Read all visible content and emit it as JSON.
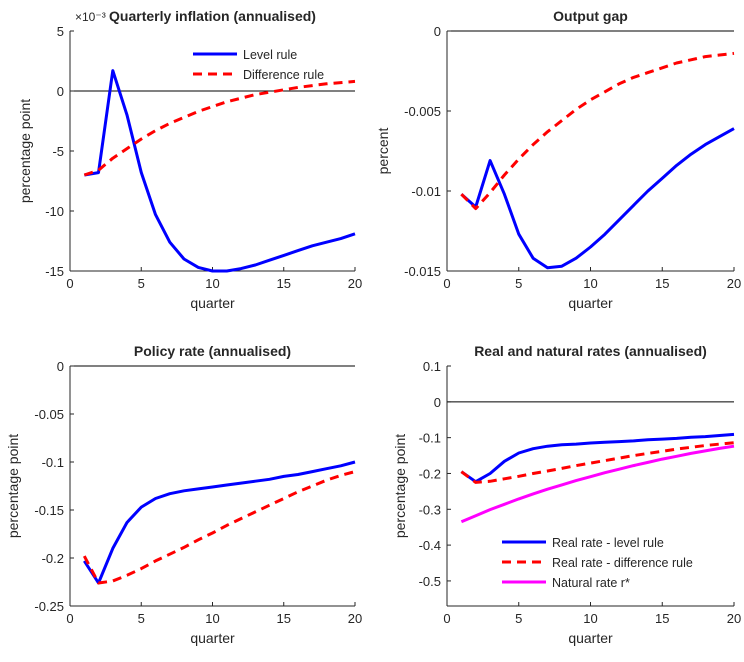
{
  "colors": {
    "level": "#0000ff",
    "difference": "#ff0000",
    "natural": "#ff00ff",
    "axis": "#262626",
    "zero": "#000000"
  },
  "chart_data": [
    {
      "type": "line",
      "title": "Quarterly inflation (annualised)",
      "xlabel": "quarter",
      "ylabel": "percentage point",
      "exponent": "×10⁻³",
      "xlim": [
        0,
        20
      ],
      "ylim": [
        -15,
        5
      ],
      "xticks": [
        0,
        5,
        10,
        15,
        20
      ],
      "xtick_labels": [
        "0",
        "5",
        "10",
        "15",
        "20"
      ],
      "yticks": [
        -15,
        -10,
        -5,
        0,
        5
      ],
      "ytick_labels": [
        "-15",
        "-10",
        "-5",
        "0",
        "5"
      ],
      "legend": "top-right",
      "zero_line": true,
      "x": [
        1,
        2,
        3,
        4,
        5,
        6,
        7,
        8,
        9,
        10,
        11,
        12,
        13,
        14,
        15,
        16,
        17,
        18,
        19,
        20
      ],
      "series": [
        {
          "name": "Level rule",
          "style": "solid",
          "color": "#0000ff",
          "values": [
            -7.0,
            -6.8,
            1.7,
            -2.0,
            -6.8,
            -10.3,
            -12.6,
            -14.0,
            -14.7,
            -15.0,
            -15.0,
            -14.8,
            -14.5,
            -14.1,
            -13.7,
            -13.3,
            -12.9,
            -12.6,
            -12.3,
            -11.9
          ]
        },
        {
          "name": "Difference rule",
          "style": "dashed",
          "color": "#ff0000",
          "values": [
            -7.0,
            -6.6,
            -5.6,
            -4.8,
            -4.0,
            -3.3,
            -2.7,
            -2.2,
            -1.7,
            -1.3,
            -0.9,
            -0.6,
            -0.3,
            -0.1,
            0.1,
            0.3,
            0.45,
            0.6,
            0.7,
            0.8
          ]
        }
      ]
    },
    {
      "type": "line",
      "title": "Output gap",
      "xlabel": "quarter",
      "ylabel": "percent",
      "xlim": [
        0,
        20
      ],
      "ylim": [
        -0.015,
        0
      ],
      "xticks": [
        0,
        5,
        10,
        15,
        20
      ],
      "xtick_labels": [
        "0",
        "5",
        "10",
        "15",
        "20"
      ],
      "yticks": [
        -0.015,
        -0.01,
        -0.005,
        0
      ],
      "ytick_labels": [
        "-0.015",
        "-0.01",
        "-0.005",
        "0"
      ],
      "zero_line": true,
      "x": [
        1,
        2,
        3,
        4,
        5,
        6,
        7,
        8,
        9,
        10,
        11,
        12,
        13,
        14,
        15,
        16,
        17,
        18,
        19,
        20
      ],
      "series": [
        {
          "name": "Level rule",
          "style": "solid",
          "color": "#0000ff",
          "values": [
            -0.0102,
            -0.011,
            -0.0081,
            -0.0102,
            -0.0127,
            -0.0142,
            -0.0148,
            -0.0147,
            -0.0142,
            -0.0135,
            -0.0127,
            -0.0118,
            -0.0109,
            -0.01,
            -0.0092,
            -0.0084,
            -0.0077,
            -0.0071,
            -0.0066,
            -0.0061
          ]
        },
        {
          "name": "Difference rule",
          "style": "dashed",
          "color": "#ff0000",
          "values": [
            -0.0102,
            -0.0111,
            -0.0101,
            -0.009,
            -0.008,
            -0.0071,
            -0.0063,
            -0.0056,
            -0.0049,
            -0.0043,
            -0.0038,
            -0.0033,
            -0.0029,
            -0.0026,
            -0.0023,
            -0.002,
            -0.0018,
            -0.0016,
            -0.0015,
            -0.0014
          ]
        }
      ]
    },
    {
      "type": "line",
      "title": "Policy rate (annualised)",
      "xlabel": "quarter",
      "ylabel": "percentage point",
      "xlim": [
        0,
        20
      ],
      "ylim": [
        -0.25,
        0
      ],
      "xticks": [
        0,
        5,
        10,
        15,
        20
      ],
      "xtick_labels": [
        "0",
        "5",
        "10",
        "15",
        "20"
      ],
      "yticks": [
        -0.25,
        -0.2,
        -0.15,
        -0.1,
        -0.05,
        0
      ],
      "ytick_labels": [
        "-0.25",
        "-0.2",
        "-0.15",
        "-0.1",
        "-0.05",
        "0"
      ],
      "zero_line": true,
      "x": [
        1,
        2,
        3,
        4,
        5,
        6,
        7,
        8,
        9,
        10,
        11,
        12,
        13,
        14,
        15,
        16,
        17,
        18,
        19,
        20
      ],
      "series": [
        {
          "name": "Level rule",
          "style": "solid",
          "color": "#0000ff",
          "values": [
            -0.203,
            -0.226,
            -0.19,
            -0.163,
            -0.147,
            -0.138,
            -0.133,
            -0.13,
            -0.128,
            -0.126,
            -0.124,
            -0.122,
            -0.12,
            -0.118,
            -0.115,
            -0.113,
            -0.11,
            -0.107,
            -0.104,
            -0.1
          ]
        },
        {
          "name": "Difference rule",
          "style": "dashed",
          "color": "#ff0000",
          "values": [
            -0.198,
            -0.226,
            -0.224,
            -0.218,
            -0.211,
            -0.203,
            -0.196,
            -0.189,
            -0.181,
            -0.174,
            -0.166,
            -0.159,
            -0.152,
            -0.145,
            -0.138,
            -0.131,
            -0.125,
            -0.119,
            -0.114,
            -0.11
          ]
        }
      ]
    },
    {
      "type": "line",
      "title": "Real and natural rates (annualised)",
      "xlabel": "quarter",
      "ylabel": "percentage point",
      "xlim": [
        0,
        20
      ],
      "ylim": [
        -0.57,
        0.1
      ],
      "xticks": [
        0,
        5,
        10,
        15,
        20
      ],
      "xtick_labels": [
        "0",
        "5",
        "10",
        "15",
        "20"
      ],
      "yticks": [
        -0.5,
        -0.4,
        -0.3,
        -0.2,
        -0.1,
        0,
        0.1
      ],
      "ytick_labels": [
        "-0.5",
        "-0.4",
        "-0.3",
        "-0.2",
        "-0.1",
        "0",
        "0.1"
      ],
      "legend": "bottom-center",
      "zero_line": true,
      "x": [
        1,
        2,
        3,
        4,
        5,
        6,
        7,
        8,
        9,
        10,
        11,
        12,
        13,
        14,
        15,
        16,
        17,
        18,
        19,
        20
      ],
      "series": [
        {
          "name": "Real rate - level rule",
          "style": "solid",
          "color": "#0000ff",
          "values": [
            -0.195,
            -0.223,
            -0.2,
            -0.166,
            -0.143,
            -0.131,
            -0.124,
            -0.12,
            -0.118,
            -0.115,
            -0.113,
            -0.111,
            -0.109,
            -0.106,
            -0.104,
            -0.102,
            -0.099,
            -0.097,
            -0.094,
            -0.091
          ]
        },
        {
          "name": "Real rate - difference rule",
          "style": "dashed",
          "color": "#ff0000",
          "values": [
            -0.195,
            -0.225,
            -0.222,
            -0.215,
            -0.208,
            -0.2,
            -0.193,
            -0.186,
            -0.178,
            -0.171,
            -0.164,
            -0.157,
            -0.15,
            -0.144,
            -0.138,
            -0.132,
            -0.127,
            -0.122,
            -0.118,
            -0.114
          ]
        },
        {
          "name": "Natural rate r*",
          "style": "solid",
          "color": "#ff00ff",
          "values": [
            -0.335,
            -0.318,
            -0.301,
            -0.286,
            -0.271,
            -0.257,
            -0.244,
            -0.232,
            -0.22,
            -0.209,
            -0.198,
            -0.188,
            -0.178,
            -0.169,
            -0.16,
            -0.152,
            -0.144,
            -0.137,
            -0.13,
            -0.124
          ]
        }
      ]
    }
  ]
}
